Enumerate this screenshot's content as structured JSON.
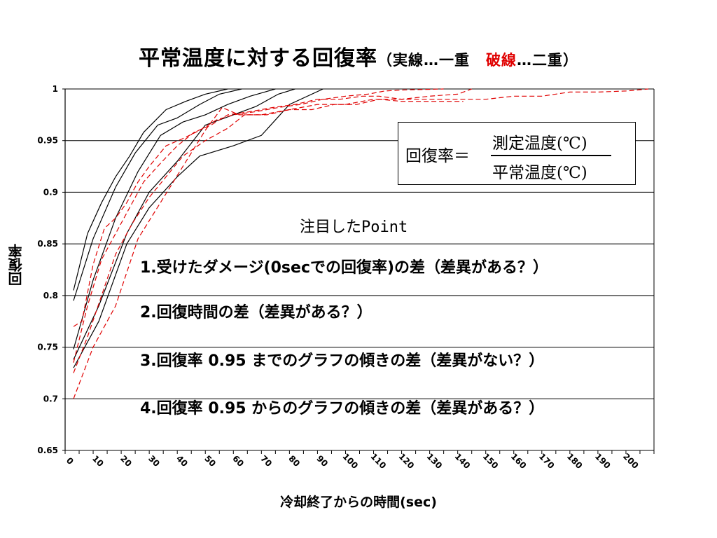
{
  "title": {
    "main": "平常温度に対する回復率",
    "paren_open": "（",
    "solid_desc": "実線…一重",
    "dashed_word": "破線",
    "dashed_desc": "…二重",
    "paren_close": "）"
  },
  "formula": {
    "left": "回復率＝",
    "numerator": "測定温度(℃)",
    "denominator": "平常温度(℃)"
  },
  "points": {
    "heading": "注目したPoint",
    "items": [
      "1.受けたダメージ(0secでの回復率)の差（差異がある？）",
      "2.回復時間の差（差異がある？）",
      "3.回復率 0.95 までのグラフの傾きの差（差異がない？）",
      "4.回復率 0.95 からのグラフの傾きの差（差異がある？）"
    ]
  },
  "colors": {
    "solid_series": "#000000",
    "dashed_series": "#e00000",
    "title_accent": "#e00000"
  },
  "chart_data": {
    "type": "line",
    "xlabel": "冷却終了からの時間(sec)",
    "ylabel": "回復率",
    "xlim": [
      0,
      210
    ],
    "ylim": [
      0.65,
      1.0
    ],
    "x_ticks": [
      0,
      10,
      20,
      30,
      40,
      50,
      60,
      70,
      80,
      90,
      100,
      110,
      120,
      130,
      140,
      150,
      160,
      170,
      180,
      190,
      200
    ],
    "y_ticks": [
      "0.65",
      "0.7",
      "0.75",
      "0.8",
      "0.85",
      "0.9",
      "0.95",
      "1"
    ],
    "grid": "horizontal",
    "series": [
      {
        "style": "solid",
        "x": [
          3,
          8,
          13,
          18,
          23,
          28,
          36,
          43,
          50,
          58
        ],
        "y": [
          0.805,
          0.86,
          0.89,
          0.915,
          0.935,
          0.958,
          0.98,
          0.988,
          0.995,
          1.0
        ]
      },
      {
        "style": "solid",
        "x": [
          3,
          10,
          18,
          25,
          33,
          40,
          48,
          55,
          63
        ],
        "y": [
          0.795,
          0.855,
          0.905,
          0.938,
          0.965,
          0.972,
          0.985,
          0.995,
          1.0
        ]
      },
      {
        "style": "solid",
        "x": [
          3,
          10,
          18,
          26,
          34,
          42,
          50,
          58,
          66,
          75
        ],
        "y": [
          0.748,
          0.815,
          0.875,
          0.92,
          0.955,
          0.968,
          0.975,
          0.985,
          0.993,
          1.0
        ]
      },
      {
        "style": "solid",
        "x": [
          3,
          12,
          22,
          30,
          40,
          50,
          60,
          68,
          76,
          82
        ],
        "y": [
          0.738,
          0.79,
          0.86,
          0.9,
          0.93,
          0.965,
          0.975,
          0.983,
          0.995,
          1.0
        ]
      },
      {
        "style": "solid",
        "x": [
          3,
          12,
          22,
          30,
          40,
          48,
          60,
          70,
          80,
          92
        ],
        "y": [
          0.73,
          0.775,
          0.85,
          0.885,
          0.915,
          0.935,
          0.945,
          0.955,
          0.985,
          1.0
        ]
      },
      {
        "style": "dashed",
        "x": [
          3,
          6,
          10,
          14,
          18,
          22,
          26,
          30,
          36,
          42,
          48,
          54,
          60,
          68,
          76,
          84,
          92,
          100,
          108,
          114,
          120,
          135
        ],
        "y": [
          0.77,
          0.775,
          0.83,
          0.865,
          0.875,
          0.89,
          0.91,
          0.925,
          0.945,
          0.952,
          0.96,
          0.97,
          0.975,
          0.978,
          0.982,
          0.985,
          0.99,
          0.993,
          0.995,
          0.998,
          0.999,
          1.0
        ]
      },
      {
        "style": "dashed",
        "x": [
          3,
          8,
          13,
          18,
          23,
          28,
          34,
          40,
          46,
          52,
          58,
          66,
          74,
          82,
          90,
          98,
          106,
          112,
          120,
          130,
          140,
          145
        ],
        "y": [
          0.735,
          0.79,
          0.835,
          0.86,
          0.885,
          0.91,
          0.928,
          0.945,
          0.958,
          0.965,
          0.975,
          0.978,
          0.982,
          0.985,
          0.99,
          0.99,
          0.993,
          0.993,
          0.99,
          0.993,
          0.995,
          1.0
        ]
      },
      {
        "style": "dashed",
        "x": [
          3,
          8,
          13,
          18,
          24,
          30,
          36,
          42,
          50,
          58,
          64,
          72,
          80,
          88,
          96,
          104,
          112,
          120,
          130,
          142
        ],
        "y": [
          0.725,
          0.76,
          0.8,
          0.84,
          0.87,
          0.895,
          0.915,
          0.935,
          0.95,
          0.962,
          0.975,
          0.975,
          0.98,
          0.98,
          0.985,
          0.985,
          0.99,
          0.988,
          0.988,
          0.988
        ]
      },
      {
        "style": "dashed",
        "x": [
          3,
          10,
          18,
          26,
          34,
          42,
          50,
          56,
          62,
          70,
          80,
          90,
          100,
          110,
          120,
          130,
          140,
          150,
          160,
          170,
          180,
          190,
          200,
          208
        ],
        "y": [
          0.7,
          0.75,
          0.79,
          0.855,
          0.89,
          0.925,
          0.96,
          0.982,
          0.975,
          0.975,
          0.98,
          0.985,
          0.985,
          0.99,
          0.99,
          0.99,
          0.99,
          0.99,
          0.993,
          0.993,
          0.997,
          0.997,
          0.998,
          1.0
        ]
      }
    ]
  }
}
